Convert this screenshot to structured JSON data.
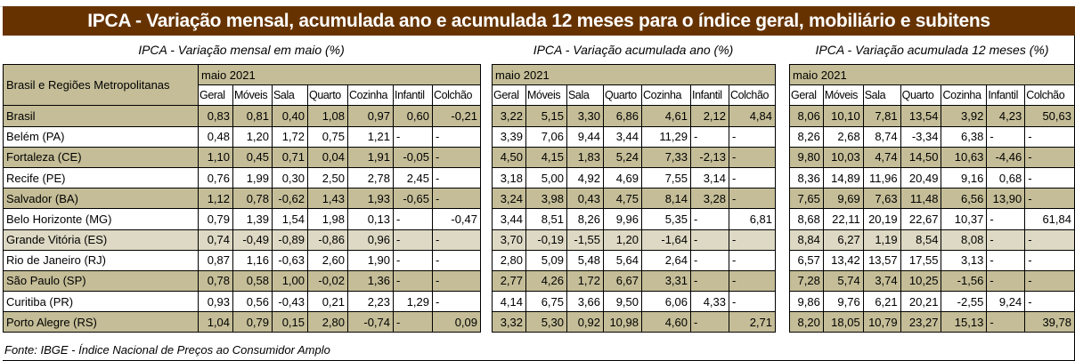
{
  "title": "IPCA - Variação mensal, acumulada ano e acumulada 12 meses para o índice geral, mobiliário e subitens",
  "sections": [
    {
      "title": "IPCA - Variação mensal em maio (%)",
      "period": "maio 2021"
    },
    {
      "title": "IPCA - Variação acumulada ano (%)",
      "period": "maio 2021"
    },
    {
      "title": "IPCA - Variação acumulada 12 meses (%)",
      "period": "maio 2021"
    }
  ],
  "row_header": "Brasil e Regiões Metropolitanas",
  "columns": [
    "Geral",
    "Móveis",
    "Sala",
    "Quarto",
    "Cozinha",
    "Infantil",
    "Colchão"
  ],
  "rows": [
    {
      "name": "Brasil",
      "v": [
        [
          "0,83",
          "0,81",
          "0,40",
          "1,08",
          "0,97",
          "0,60",
          "-0,21"
        ],
        [
          "3,22",
          "5,15",
          "3,30",
          "6,86",
          "4,61",
          "2,12",
          "4,84"
        ],
        [
          "8,06",
          "10,10",
          "7,81",
          "13,54",
          "3,92",
          "4,23",
          "50,63"
        ]
      ]
    },
    {
      "name": "Belém (PA)",
      "v": [
        [
          "0,48",
          "1,20",
          "1,72",
          "0,75",
          "1,21",
          "-",
          "-"
        ],
        [
          "3,39",
          "7,06",
          "9,44",
          "3,44",
          "11,29",
          "-",
          "-"
        ],
        [
          "8,26",
          "2,68",
          "8,74",
          "-3,34",
          "6,38",
          "-",
          "-"
        ]
      ]
    },
    {
      "name": "Fortaleza (CE)",
      "v": [
        [
          "1,10",
          "0,45",
          "0,71",
          "0,04",
          "1,91",
          "-0,05",
          "-"
        ],
        [
          "4,50",
          "4,15",
          "1,83",
          "5,24",
          "7,33",
          "-2,13",
          "-"
        ],
        [
          "9,80",
          "10,03",
          "4,74",
          "14,50",
          "10,63",
          "-4,46",
          "-"
        ]
      ]
    },
    {
      "name": "Recife (PE)",
      "v": [
        [
          "0,76",
          "1,99",
          "0,30",
          "2,50",
          "2,78",
          "2,45",
          "-"
        ],
        [
          "3,18",
          "5,00",
          "4,92",
          "4,69",
          "7,55",
          "3,14",
          "-"
        ],
        [
          "8,36",
          "14,89",
          "11,96",
          "20,49",
          "9,16",
          "0,68",
          "-"
        ]
      ]
    },
    {
      "name": "Salvador (BA)",
      "v": [
        [
          "1,12",
          "0,78",
          "-0,62",
          "1,43",
          "1,93",
          "-0,65",
          "-"
        ],
        [
          "3,24",
          "3,98",
          "0,43",
          "4,75",
          "8,14",
          "3,28",
          "-"
        ],
        [
          "7,65",
          "9,69",
          "7,63",
          "11,48",
          "6,56",
          "13,90",
          "-"
        ]
      ]
    },
    {
      "name": "Belo Horizonte (MG)",
      "v": [
        [
          "0,79",
          "1,39",
          "1,54",
          "1,98",
          "0,13",
          "-",
          "-0,47"
        ],
        [
          "3,44",
          "8,51",
          "8,26",
          "9,96",
          "5,35",
          "-",
          "6,81"
        ],
        [
          "8,68",
          "22,11",
          "20,19",
          "22,67",
          "10,37",
          "-",
          "61,84"
        ]
      ]
    },
    {
      "name": "Grande Vitória (ES)",
      "v": [
        [
          "0,74",
          "-0,49",
          "-0,89",
          "-0,86",
          "0,96",
          "-",
          "-"
        ],
        [
          "3,70",
          "-0,19",
          "-1,55",
          "1,20",
          "-1,64",
          "-",
          "-"
        ],
        [
          "8,84",
          "6,27",
          "1,19",
          "8,54",
          "8,08",
          "-",
          "-"
        ]
      ]
    },
    {
      "name": "Rio de Janeiro (RJ)",
      "v": [
        [
          "0,87",
          "1,16",
          "-0,63",
          "2,60",
          "1,90",
          "-",
          "-"
        ],
        [
          "2,80",
          "5,09",
          "5,48",
          "5,64",
          "2,64",
          "-",
          "-"
        ],
        [
          "6,57",
          "13,42",
          "13,57",
          "17,55",
          "3,13",
          "-",
          "-"
        ]
      ]
    },
    {
      "name": "São Paulo (SP)",
      "v": [
        [
          "0,78",
          "0,58",
          "1,00",
          "-0,02",
          "1,36",
          "-",
          "-"
        ],
        [
          "2,77",
          "4,26",
          "1,72",
          "6,67",
          "3,31",
          "-",
          "-"
        ],
        [
          "7,28",
          "5,74",
          "3,74",
          "10,25",
          "-1,56",
          "-",
          "-"
        ]
      ]
    },
    {
      "name": "Curitiba (PR)",
      "v": [
        [
          "0,93",
          "0,56",
          "-0,43",
          "0,21",
          "2,23",
          "1,29",
          "-"
        ],
        [
          "4,14",
          "6,75",
          "3,66",
          "9,50",
          "6,06",
          "4,33",
          "-"
        ],
        [
          "9,86",
          "9,76",
          "6,21",
          "20,21",
          "-2,55",
          "9,24",
          "-"
        ]
      ]
    },
    {
      "name": "Porto Alegre (RS)",
      "v": [
        [
          "1,04",
          "0,79",
          "0,15",
          "2,80",
          "-0,74",
          "-",
          "0,09"
        ],
        [
          "3,32",
          "5,30",
          "0,92",
          "10,98",
          "4,60",
          "-",
          "2,71"
        ],
        [
          "8,20",
          "18,05",
          "10,79",
          "23,27",
          "15,13",
          "-",
          "39,78"
        ]
      ]
    }
  ],
  "footer": "Fonte: IBGE - Índice Nacional de Preços ao Consumidor Amplo",
  "colors": {
    "title_bg": "#663300",
    "tan": "#c4bd97",
    "light": "#ddd9c4"
  }
}
